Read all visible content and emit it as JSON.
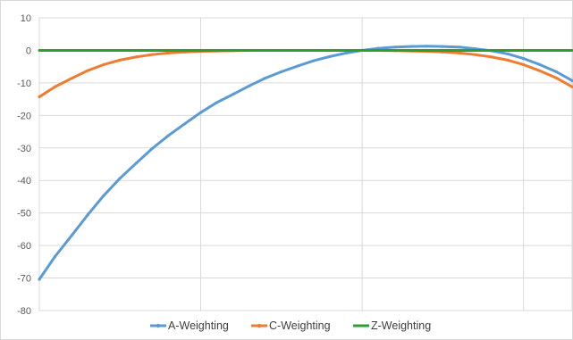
{
  "chart_data": {
    "type": "line",
    "title": "",
    "xlabel": "",
    "ylabel": "",
    "ylim": [
      -80,
      10
    ],
    "yticks": [
      10,
      0,
      -10,
      -20,
      -30,
      -40,
      -50,
      -60,
      -70,
      -80
    ],
    "x_gridlines": "vertical gridlines at 1 kHz-decade positions (frequency axis, log scale, no tick labels shown)",
    "grid": true,
    "legend_position": "bottom",
    "x": [
      10,
      12.5,
      16,
      20,
      25,
      31.5,
      40,
      50,
      63,
      80,
      100,
      125,
      160,
      200,
      250,
      315,
      400,
      500,
      630,
      800,
      1000,
      1250,
      1600,
      2000,
      2500,
      3150,
      4000,
      5000,
      6300,
      8000,
      10000,
      12500,
      16000,
      20000
    ],
    "x_scale": "log",
    "series": [
      {
        "name": "A-Weighting",
        "color": "#5b9bd5",
        "values": [
          -70.4,
          -63.4,
          -56.7,
          -50.5,
          -44.7,
          -39.4,
          -34.6,
          -30.2,
          -26.2,
          -22.5,
          -19.1,
          -16.1,
          -13.4,
          -10.9,
          -8.6,
          -6.6,
          -4.8,
          -3.2,
          -1.9,
          -0.8,
          0.0,
          0.6,
          1.0,
          1.2,
          1.3,
          1.2,
          1.0,
          0.5,
          -0.1,
          -1.1,
          -2.5,
          -4.3,
          -6.6,
          -9.3
        ]
      },
      {
        "name": "C-Weighting",
        "color": "#ed7d31",
        "values": [
          -14.3,
          -11.2,
          -8.5,
          -6.2,
          -4.4,
          -3.0,
          -2.0,
          -1.3,
          -0.8,
          -0.5,
          -0.3,
          -0.2,
          -0.1,
          0.0,
          0.0,
          0.0,
          0.0,
          0.0,
          0.0,
          0.0,
          0.0,
          0.0,
          -0.1,
          -0.2,
          -0.3,
          -0.5,
          -0.8,
          -1.3,
          -2.0,
          -3.0,
          -4.4,
          -6.2,
          -8.5,
          -11.2
        ]
      },
      {
        "name": "Z-Weighting",
        "color": "#2ca02c",
        "values": [
          0,
          0,
          0,
          0,
          0,
          0,
          0,
          0,
          0,
          0,
          0,
          0,
          0,
          0,
          0,
          0,
          0,
          0,
          0,
          0,
          0,
          0,
          0,
          0,
          0,
          0,
          0,
          0,
          0,
          0,
          0,
          0,
          0,
          0
        ]
      }
    ]
  }
}
